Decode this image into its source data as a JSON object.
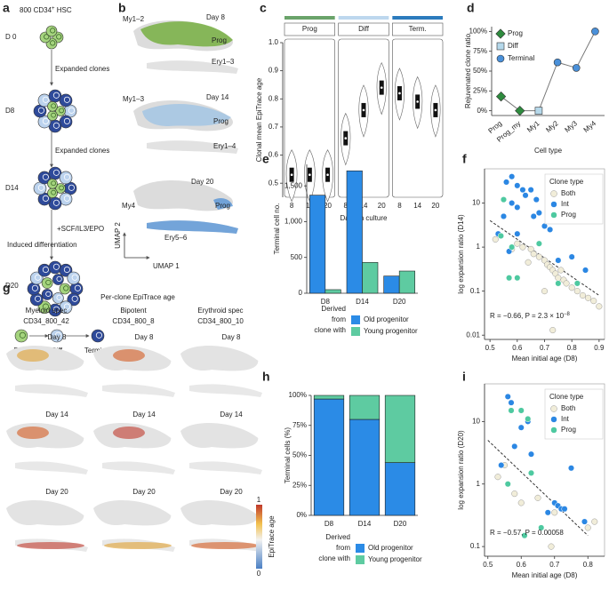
{
  "panel_labels": [
    "a",
    "b",
    "c",
    "d",
    "e",
    "f",
    "g",
    "h",
    "i"
  ],
  "diagram": {
    "title": "800 CD34",
    "title_sup": "+",
    "title_end": " HSC",
    "stages": [
      "D 0",
      "D8",
      "D14",
      "D20"
    ],
    "steps": [
      "Expanded clones",
      "Expanded clones",
      "+SCF/IL3/EPO",
      "Induced differentiation"
    ],
    "legend": [
      "Prog",
      "Diff",
      "Terminal"
    ]
  },
  "umap": {
    "rows": [
      [
        "My1–2",
        "Day 8",
        "Prog",
        "Ery1–3"
      ],
      [
        "My1–3",
        "Day 14",
        "Prog",
        "Ery1–4"
      ],
      [
        "Day 20",
        "My4",
        "Prog",
        "Ery5–6"
      ]
    ],
    "axis_y": "UMAP 2",
    "axis_x": "UMAP 1"
  },
  "per_clone": {
    "title": "Per-clone EpiTrace age",
    "columns": [
      {
        "name": "Myeloid spec",
        "clone": "CD34_800_42"
      },
      {
        "name": "Bipotent",
        "clone": "CD34_800_8"
      },
      {
        "name": "Erythroid spec",
        "clone": "CD34_800_10"
      }
    ],
    "days": [
      "Day 8",
      "Day 14",
      "Day 20"
    ],
    "colorbar": {
      "label": "EpiTrace age",
      "ticks": [
        1,
        0
      ]
    }
  },
  "chart_data": [
    {
      "type": "violin",
      "ylabel": "Clonal mean EpiTrace age",
      "xlabel": "Days in culture",
      "x": [
        8,
        14,
        20
      ],
      "series": [
        {
          "name": "Prog",
          "color": "#6aa36a",
          "values": [
            0.53,
            0.53,
            0.53
          ]
        },
        {
          "name": "Diff",
          "color": "#bdd7ee",
          "values": [
            0.66,
            0.76,
            0.84
          ]
        },
        {
          "name": "Term.",
          "color": "#2b7bbd",
          "values": [
            0.82,
            0.79,
            0.76
          ]
        }
      ],
      "ylim": [
        0.45,
        1.0
      ],
      "yticks": [
        0.5,
        0.6,
        0.7,
        0.8,
        0.9,
        {
          "value": 1,
          "label": "1.0"
        }
      ]
    },
    {
      "type": "line",
      "ylabel": "Rejuvenated clone ratio",
      "xlabel": "Cell type",
      "categories": [
        "Prog",
        "Prog_my",
        "My1",
        "My2",
        "My3",
        "My4"
      ],
      "line_color": "#777777",
      "series": [
        {
          "name": "Prog",
          "color": "#2e8b3e",
          "marker": "diamond",
          "values": [
            18,
            0,
            null,
            null,
            null,
            null
          ]
        },
        {
          "name": "Diff",
          "color": "#b5d8ea",
          "marker": "square",
          "values": [
            null,
            null,
            0,
            null,
            null,
            null
          ]
        },
        {
          "name": "Terminal",
          "color": "#4a90d9",
          "marker": "circle",
          "values": [
            null,
            null,
            null,
            61,
            54,
            100
          ]
        }
      ],
      "ylim": [
        -6,
        106
      ],
      "yticks": [
        {
          "value": 0,
          "label": "0%"
        },
        {
          "value": 25,
          "label": "25%"
        },
        {
          "value": 50,
          "label": "50%"
        },
        {
          "value": 75,
          "label": "75%"
        },
        {
          "value": 100,
          "label": "100%"
        }
      ]
    },
    {
      "type": "bar",
      "ylabel": "Terminal cell no.",
      "categories": [
        "D8",
        "D14",
        "D20"
      ],
      "legend_title": [
        "Derived",
        "from",
        "clone with"
      ],
      "series": [
        {
          "name": "Old progenitor",
          "color": "#2b8be6",
          "values": [
            1370,
            1710,
            240
          ]
        },
        {
          "name": "Young progenitor",
          "color": "#5ecba1",
          "values": [
            50,
            430,
            310
          ]
        }
      ],
      "ylim": [
        0,
        1800
      ],
      "yticks": [
        0,
        500,
        {
          "value": 1000,
          "label": "1,000"
        },
        {
          "value": 1500,
          "label": "1,500"
        }
      ]
    },
    {
      "type": "scatter",
      "log_y": true,
      "ylabel": "log expansion ratio (D14)",
      "xlabel": "Mean initial age (D8)",
      "legend_title": "Clone type",
      "annotation": "R = −0.66, P = 2.3 × 10",
      "annotation_sup": "−8",
      "trend": {
        "x": [
          0.5,
          0.9
        ],
        "y": [
          4,
          0.08
        ]
      },
      "series": [
        {
          "name": "Both",
          "color": "#f1edd9",
          "x": [
            0.52,
            0.6,
            0.62,
            0.65,
            0.66,
            0.68,
            0.7,
            0.71,
            0.72,
            0.73,
            0.74,
            0.75,
            0.76,
            0.77,
            0.78,
            0.8,
            0.82,
            0.84,
            0.86,
            0.88,
            0.9,
            0.73,
            0.7,
            0.64,
            0.58
          ],
          "values": [
            1.5,
            1.2,
            1,
            0.9,
            0.7,
            0.6,
            0.5,
            0.4,
            0.35,
            0.3,
            0.25,
            0.2,
            0.3,
            0.18,
            0.15,
            0.12,
            0.1,
            0.08,
            0.07,
            0.06,
            0.045,
            0.013,
            0.1,
            0.45,
            0.9
          ]
        },
        {
          "name": "Int",
          "color": "#2b87e3",
          "x": [
            0.56,
            0.58,
            0.6,
            0.62,
            0.63,
            0.65,
            0.67,
            0.58,
            0.6,
            0.55,
            0.66,
            0.7,
            0.72,
            0.68,
            0.6,
            0.75,
            0.8,
            0.85,
            0.53,
            0.57
          ],
          "values": [
            30,
            40,
            25,
            20,
            15,
            20,
            12,
            10,
            8,
            5,
            5,
            3,
            2.5,
            6,
            2,
            0.5,
            0.6,
            0.3,
            2,
            0.8
          ]
        },
        {
          "name": "Prog",
          "color": "#4ec9a0",
          "x": [
            0.55,
            0.54,
            0.58,
            0.57,
            0.6,
            0.68,
            0.82,
            0.75
          ],
          "values": [
            12,
            1.8,
            1,
            0.2,
            0.2,
            1.2,
            0.15,
            0.15
          ]
        }
      ],
      "xlim": [
        0.48,
        0.92
      ],
      "xticks": [
        0.5,
        0.6,
        0.7,
        0.8,
        0.9
      ],
      "ylim": [
        0.008,
        60
      ],
      "yticks": [
        0.01,
        0.1,
        1,
        10
      ]
    },
    {
      "type": "bar",
      "stacked": true,
      "ylabel": "Terminal cells (%)",
      "categories": [
        "D8",
        "D14",
        "D20"
      ],
      "legend_title": [
        "Derived",
        "from",
        "clone with"
      ],
      "series": [
        {
          "name": "Old progenitor",
          "color": "#2b8be6",
          "values": [
            97,
            80,
            44
          ]
        },
        {
          "name": "Young progenitor",
          "color": "#5ecba1",
          "values": [
            3,
            20,
            56
          ]
        }
      ],
      "ylim": [
        0,
        100
      ],
      "yticks": [
        {
          "value": 0,
          "label": "0%"
        },
        {
          "value": 25,
          "label": "25%"
        },
        {
          "value": 50,
          "label": "50%"
        },
        {
          "value": 75,
          "label": "75%"
        },
        {
          "value": 100,
          "label": "100%"
        }
      ]
    },
    {
      "type": "scatter",
      "log_y": true,
      "ylabel": "log expansion ratio (D20)",
      "xlabel": "Mean initial age (D8)",
      "legend_title": "Clone type",
      "annotation": "R = −0.57, P = 0.00058",
      "trend": {
        "x": [
          0.5,
          0.8
        ],
        "y": [
          5,
          0.15
        ]
      },
      "series": [
        {
          "name": "Both",
          "color": "#f1edd9",
          "x": [
            0.53,
            0.55,
            0.6,
            0.7,
            0.69,
            0.8,
            0.82,
            0.58,
            0.65
          ],
          "values": [
            1.3,
            2,
            0.5,
            0.35,
            0.1,
            0.2,
            0.25,
            0.7,
            0.6
          ]
        },
        {
          "name": "Int",
          "color": "#2b87e3",
          "x": [
            0.56,
            0.57,
            0.6,
            0.58,
            0.54,
            0.62,
            0.63,
            0.7,
            0.71,
            0.72,
            0.73,
            0.75,
            0.79,
            0.68
          ],
          "values": [
            25,
            20,
            8,
            4,
            2,
            10,
            3,
            0.5,
            0.45,
            0.4,
            0.4,
            1.8,
            0.25,
            0.35
          ]
        },
        {
          "name": "Prog",
          "color": "#4ec9a0",
          "x": [
            0.57,
            0.6,
            0.62,
            0.63,
            0.61,
            0.66,
            0.56
          ],
          "values": [
            15,
            15,
            11,
            1.5,
            0.15,
            0.2,
            1
          ]
        }
      ],
      "xlim": [
        0.49,
        0.85
      ],
      "xticks": [
        0.5,
        0.6,
        0.7,
        0.8
      ],
      "ylim": [
        0.07,
        40
      ],
      "yticks": [
        0.1,
        1,
        10
      ]
    }
  ]
}
